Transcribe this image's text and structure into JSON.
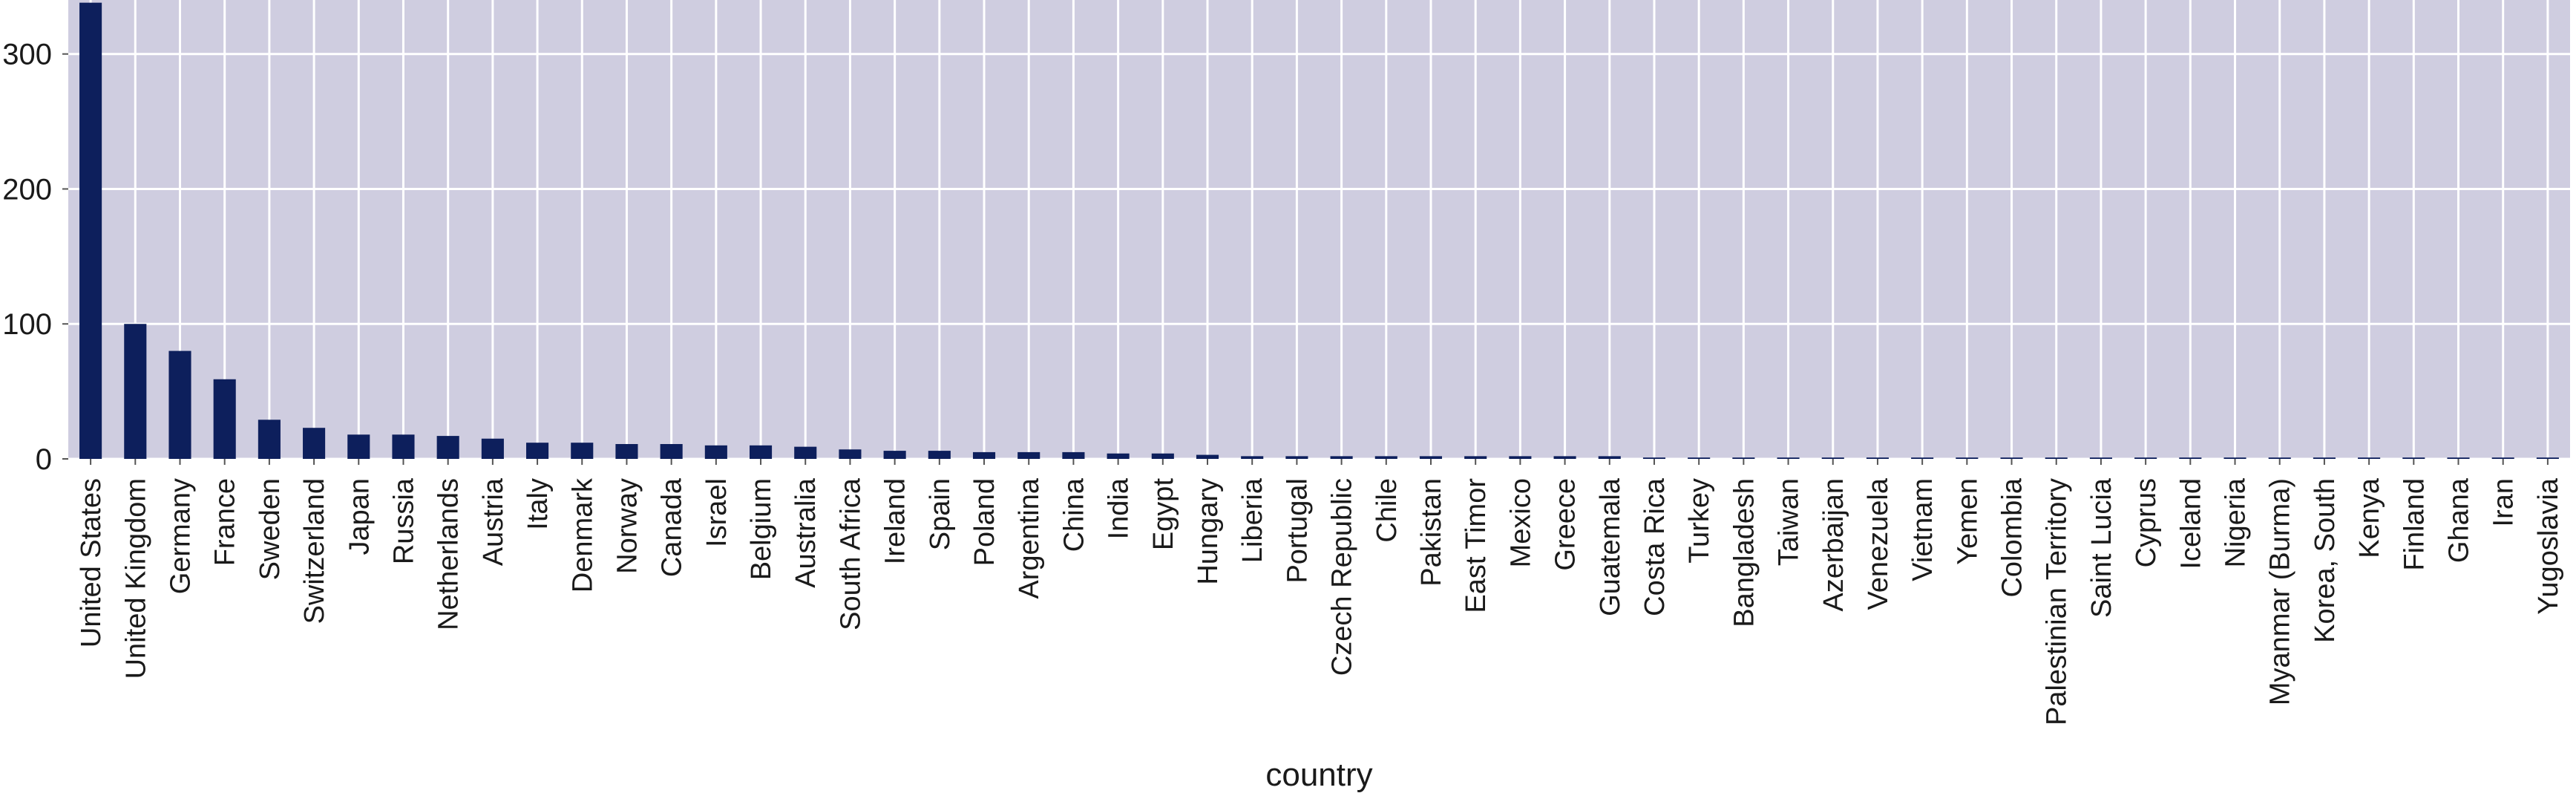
{
  "chart_data": {
    "type": "bar",
    "xlabel": "country",
    "ylabel": "",
    "ylim": [
      0,
      340
    ],
    "yticks": [
      0,
      100,
      200,
      300
    ],
    "grid": true,
    "legend": "none",
    "colors": {
      "bar": "#0d1f5c",
      "plot_bg": "#cfcde0",
      "grid": "#ffffff"
    },
    "categories": [
      "United States",
      "United Kingdom",
      "Germany",
      "France",
      "Sweden",
      "Switzerland",
      "Japan",
      "Russia",
      "Netherlands",
      "Austria",
      "Italy",
      "Denmark",
      "Norway",
      "Canada",
      "Israel",
      "Belgium",
      "Australia",
      "South Africa",
      "Ireland",
      "Spain",
      "Poland",
      "Argentina",
      "China",
      "India",
      "Egypt",
      "Hungary",
      "Liberia",
      "Portugal",
      "Czech Republic",
      "Chile",
      "Pakistan",
      "East Timor",
      "Mexico",
      "Greece",
      "Guatemala",
      "Costa Rica",
      "Turkey",
      "Bangladesh",
      "Taiwan",
      "Azerbaijan",
      "Venezuela",
      "Vietnam",
      "Yemen",
      "Colombia",
      "Palestinian Territory",
      "Saint Lucia",
      "Cyprus",
      "Iceland",
      "Nigeria",
      "Myanmar (Burma)",
      "Korea, South",
      "Kenya",
      "Finland",
      "Ghana",
      "Iran",
      "Yugoslavia"
    ],
    "values": [
      338,
      100,
      80,
      59,
      29,
      23,
      18,
      18,
      17,
      15,
      12,
      12,
      11,
      11,
      10,
      10,
      9,
      7,
      6,
      6,
      5,
      5,
      5,
      4,
      4,
      3,
      2,
      2,
      2,
      2,
      2,
      2,
      2,
      2,
      2,
      1,
      1,
      1,
      1,
      1,
      1,
      1,
      1,
      1,
      1,
      1,
      1,
      1,
      1,
      1,
      1,
      1,
      1,
      1,
      1,
      1
    ]
  }
}
